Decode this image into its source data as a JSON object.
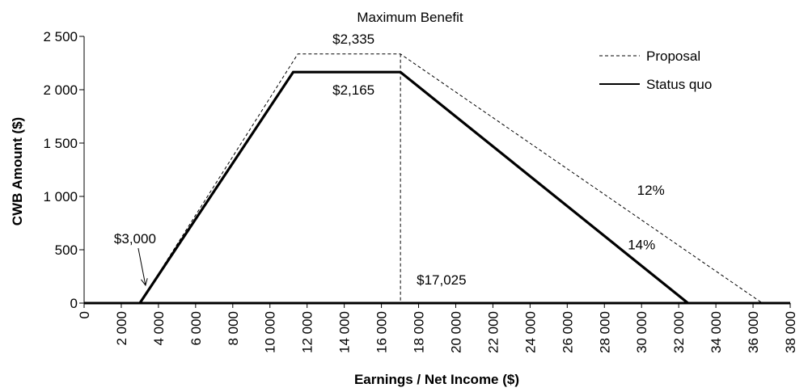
{
  "chart_data": {
    "type": "line",
    "title": "Maximum Benefit",
    "xlabel": "Earnings / Net Income ($)",
    "ylabel": "CWB Amount ($)",
    "xlim": [
      0,
      38000
    ],
    "ylim": [
      0,
      2500
    ],
    "x_ticks": [
      0,
      2000,
      4000,
      6000,
      8000,
      10000,
      12000,
      14000,
      16000,
      18000,
      20000,
      22000,
      24000,
      26000,
      28000,
      30000,
      32000,
      34000,
      36000,
      38000
    ],
    "x_tick_labels": [
      "0",
      "2 000",
      "4 000",
      "6 000",
      "8 000",
      "10 000",
      "12 000",
      "14 000",
      "16 000",
      "18 000",
      "20 000",
      "22 000",
      "24 000",
      "26 000",
      "28 000",
      "30 000",
      "32 000",
      "34 000",
      "36 000",
      "38 000"
    ],
    "y_ticks": [
      0,
      500,
      1000,
      1500,
      2000,
      2500
    ],
    "y_tick_labels": [
      "0",
      "500",
      "1 000",
      "1 500",
      "2 000",
      "2 500"
    ],
    "grid": false,
    "legend_position": "top-right",
    "series": [
      {
        "name": "Proposal",
        "style": "dashed",
        "color": "#000000",
        "points": [
          [
            3000,
            0
          ],
          [
            11500,
            2335
          ],
          [
            17025,
            2335
          ],
          [
            36500,
            0
          ]
        ]
      },
      {
        "name": "Status quo",
        "style": "solid",
        "color": "#000000",
        "points": [
          [
            3000,
            0
          ],
          [
            11250,
            2165
          ],
          [
            17025,
            2165
          ],
          [
            32500,
            0
          ]
        ]
      }
    ],
    "vertical_marker": {
      "x": 17025,
      "y_top": 2335
    },
    "annotations": {
      "max_proposal": {
        "text": "$2,335",
        "x": 14500,
        "y": 2335
      },
      "max_status": {
        "text": "$2,165",
        "x": 14500,
        "y": 2165
      },
      "start": {
        "text": "$3,000",
        "x": 3000,
        "y": 0
      },
      "threshold": {
        "text": "$17,025",
        "x": 17025,
        "y": 0
      },
      "rate_proposal": {
        "text": "12%",
        "x": 30500,
        "y": 1000
      },
      "rate_status": {
        "text": "14%",
        "x": 30000,
        "y": 550
      }
    }
  }
}
